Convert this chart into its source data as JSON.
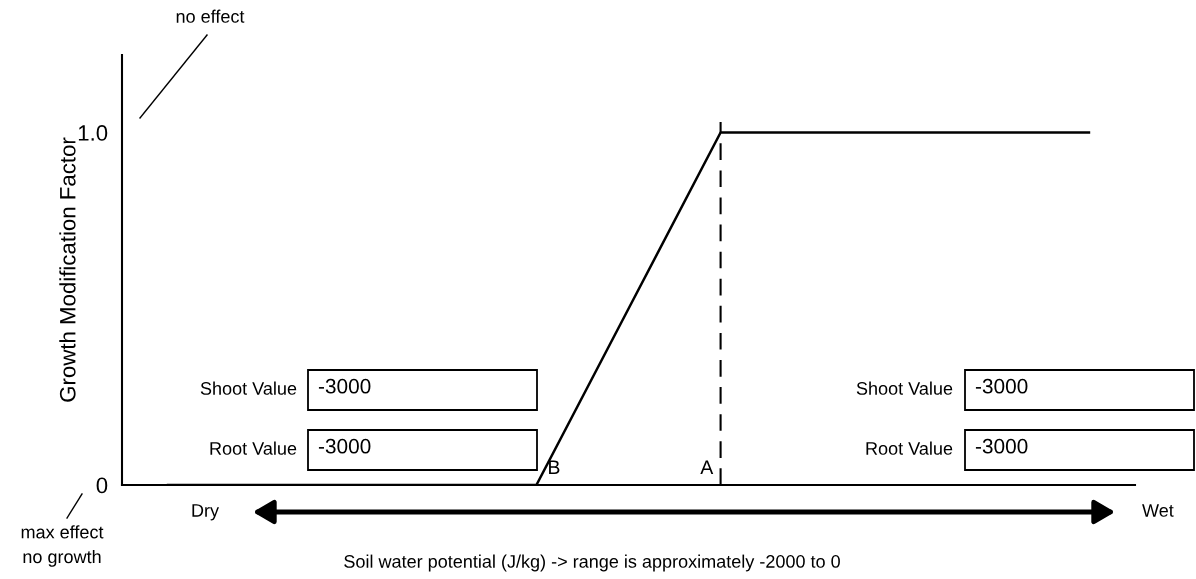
{
  "chart_data": {
    "type": "line",
    "ylabel": "Growth Modification Factor",
    "xlabel": "Soil water potential (J/kg) -> range is approximately -2000 to 0",
    "categories": [
      null,
      null,
      null,
      null,
      null,
      null,
      null,
      null,
      null,
      null,
      null
    ],
    "series": [
      {
        "color": "#000000",
        "values": [
          0,
          0,
          0,
          0,
          0,
          0.5,
          1,
          1,
          1,
          1,
          1
        ]
      }
    ],
    "ylim": [
      0,
      1.22
    ],
    "yticks": [
      0,
      {
        "value": 1,
        "label": "1.0"
      }
    ],
    "tick_labels": "y",
    "grid": false,
    "legend": false,
    "marker": "none",
    "line_style": "solid",
    "ref_lines": [
      {
        "axis": "x",
        "label": "A",
        "line_style": "dashed",
        "color": "#000000"
      }
    ],
    "annotations": [
      "B",
      "no effect",
      "max effect\nno growth",
      "Dry",
      "Wet",
      "Shoot Value",
      "-3000",
      "Root Value",
      "-3000",
      "Shoot Value",
      "-3000",
      "Root Value",
      "-3000"
    ]
  }
}
